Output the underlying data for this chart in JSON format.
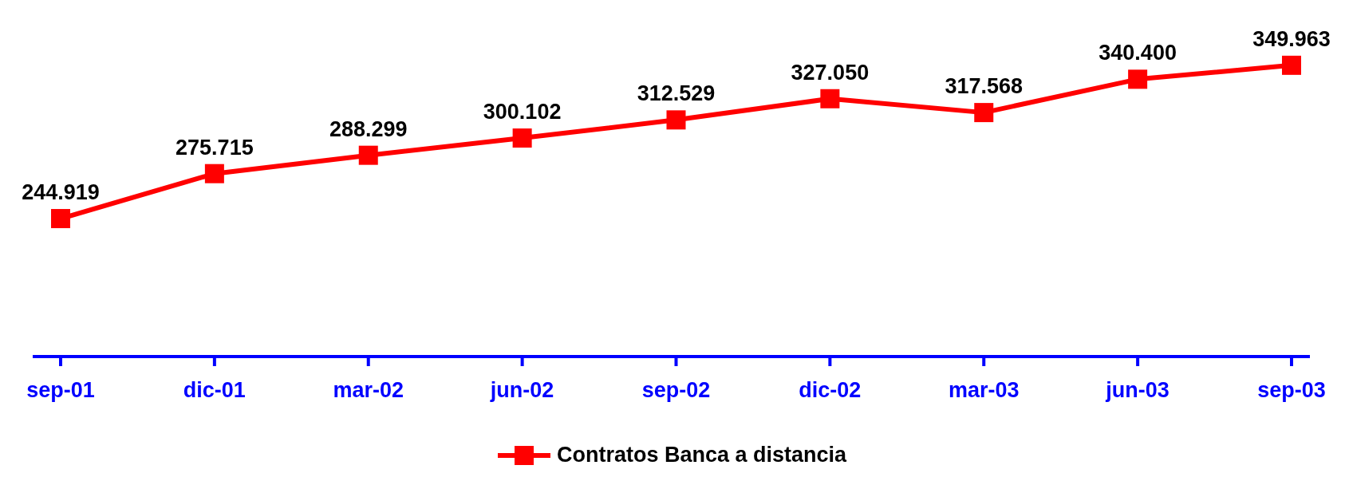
{
  "chart_data": {
    "type": "line",
    "categories": [
      "sep-01",
      "dic-01",
      "mar-02",
      "jun-02",
      "sep-02",
      "dic-02",
      "mar-03",
      "jun-03",
      "sep-03"
    ],
    "series": [
      {
        "name": "Contratos Banca a distancia",
        "color": "#ff0000",
        "values": [
          244919,
          275715,
          288299,
          300102,
          312529,
          327050,
          317568,
          340400,
          349963
        ],
        "value_labels": [
          "244.919",
          "275.715",
          "288.299",
          "300.102",
          "312.529",
          "327.050",
          "317.568",
          "340.400",
          "349.963"
        ]
      }
    ],
    "marker": "square",
    "line_style": "solid",
    "legend": "bottom",
    "grid": false,
    "tick_labels": "x"
  }
}
